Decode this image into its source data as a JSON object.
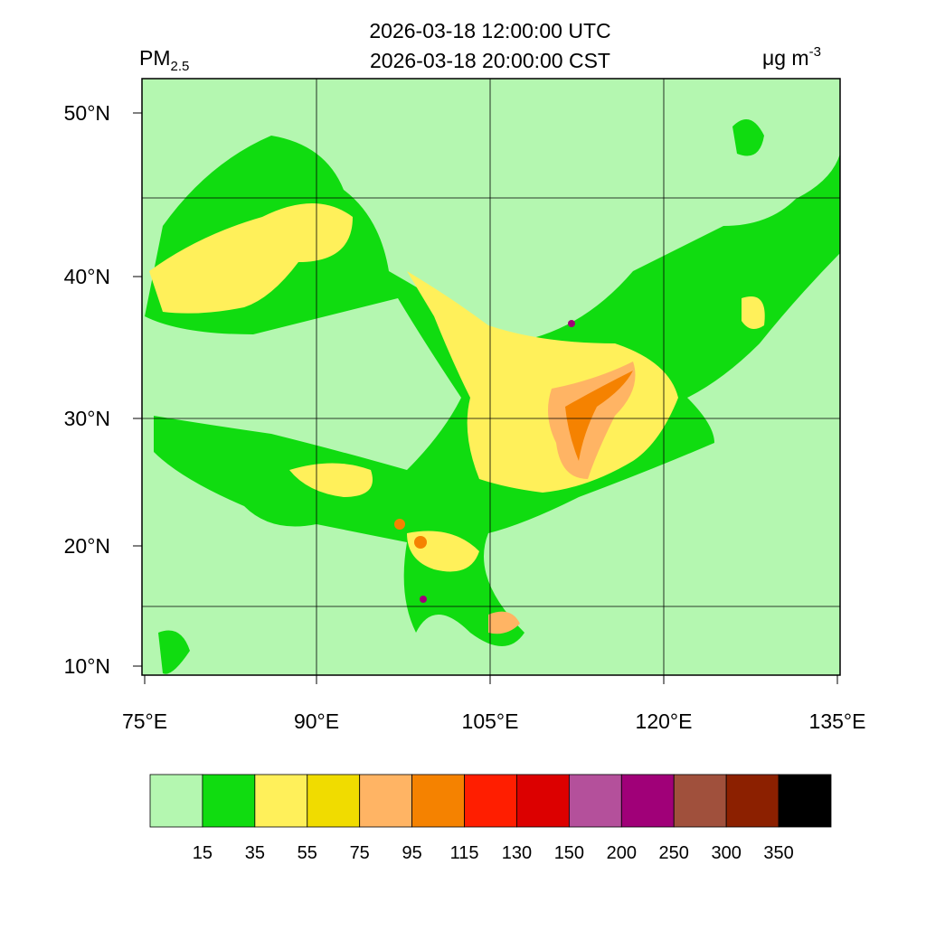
{
  "header": {
    "title_lines": [
      "2026-03-18 12:00:00 UTC",
      "2026-03-18 20:00:00 CST"
    ],
    "variable": {
      "base": "PM",
      "sub": "2.5"
    },
    "units": {
      "base": "μg m",
      "sup": "-3"
    }
  },
  "map": {
    "lat_labels": [
      "50°N",
      "40°N",
      "30°N",
      "20°N",
      "10°N"
    ],
    "lon_labels": [
      "75°E",
      "90°E",
      "105°E",
      "120°E",
      "135°E"
    ]
  },
  "colorbar": {
    "colors": [
      "#b4f7b0",
      "#10dc10",
      "#fff05a",
      "#f0dc00",
      "#ffb464",
      "#f58200",
      "#ff1e00",
      "#dc0000",
      "#b4509b",
      "#a00078",
      "#a0503c",
      "#8c2000",
      "#000000"
    ],
    "bounds": [
      15,
      35,
      55,
      75,
      95,
      115,
      130,
      150,
      200,
      250,
      300,
      350
    ]
  }
}
